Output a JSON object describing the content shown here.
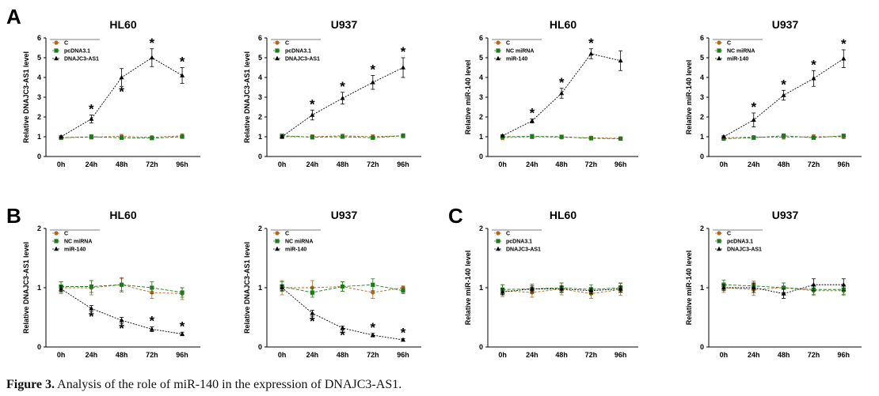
{
  "figure": {
    "caption_label": "Figure 3.",
    "caption_text": " Analysis of the role of miR-140 in the expression of DNAJC3-AS1.",
    "colors": {
      "C": "#b5651d",
      "green": "#1e7a1e",
      "black": "#000000"
    }
  },
  "chart_data": [
    {
      "panel_label": "A",
      "title": "HL60",
      "type": "line",
      "ylabel": "Relative DNAJC3-AS1 level",
      "ylim": [
        0,
        6
      ],
      "yticks": [
        0,
        1,
        2,
        3,
        4,
        5,
        6
      ],
      "categories": [
        "0h",
        "24h",
        "48h",
        "72h",
        "96h"
      ],
      "series": [
        {
          "name": "C",
          "marker": "circle",
          "color": "#b5651d",
          "values": [
            0.95,
            0.98,
            1.02,
            0.97,
            1.05
          ],
          "err": [
            0.1,
            0.1,
            0.1,
            0.08,
            0.1
          ]
        },
        {
          "name": "pcDNA3.1",
          "marker": "square",
          "color": "#1e7a1e",
          "values": [
            0.95,
            1.0,
            0.95,
            0.93,
            1.0
          ],
          "err": [
            0.08,
            0.1,
            0.08,
            0.07,
            0.08
          ]
        },
        {
          "name": "DNAJC3-AS1",
          "marker": "triangle",
          "color": "#000000",
          "values": [
            1.0,
            1.9,
            4.0,
            5.0,
            4.1
          ],
          "err": [
            0.05,
            0.2,
            0.45,
            0.45,
            0.4
          ]
        }
      ],
      "stars": [
        {
          "x": 1,
          "pos": "above"
        },
        {
          "x": 2,
          "pos": "below"
        },
        {
          "x": 3,
          "pos": "above"
        },
        {
          "x": 4,
          "pos": "above"
        }
      ]
    },
    {
      "panel_label": "",
      "title": "U937",
      "type": "line",
      "ylabel": "Relative DNAJC3-AS1 level",
      "ylim": [
        0,
        6
      ],
      "yticks": [
        0,
        1,
        2,
        3,
        4,
        5,
        6
      ],
      "categories": [
        "0h",
        "24h",
        "48h",
        "72h",
        "96h"
      ],
      "series": [
        {
          "name": "C",
          "marker": "circle",
          "color": "#b5651d",
          "values": [
            1.0,
            1.0,
            1.05,
            1.0,
            1.05
          ],
          "err": [
            0.1,
            0.1,
            0.08,
            0.1,
            0.1
          ]
        },
        {
          "name": "pcDNA3.1",
          "marker": "square",
          "color": "#1e7a1e",
          "values": [
            1.05,
            0.98,
            1.0,
            0.95,
            1.05
          ],
          "err": [
            0.08,
            0.1,
            0.08,
            0.08,
            0.1
          ]
        },
        {
          "name": "DNAJC3-AS1",
          "marker": "triangle",
          "color": "#000000",
          "values": [
            1.0,
            2.1,
            2.95,
            3.75,
            4.5
          ],
          "err": [
            0.05,
            0.25,
            0.3,
            0.35,
            0.5
          ]
        }
      ],
      "stars": [
        {
          "x": 1,
          "pos": "above"
        },
        {
          "x": 2,
          "pos": "above"
        },
        {
          "x": 3,
          "pos": "above"
        },
        {
          "x": 4,
          "pos": "above"
        }
      ]
    },
    {
      "panel_label": "",
      "title": "HL60",
      "type": "line",
      "ylabel": "Relative miR-140 level",
      "ylim": [
        0,
        6
      ],
      "yticks": [
        0,
        1,
        2,
        3,
        4,
        5,
        6
      ],
      "categories": [
        "0h",
        "24h",
        "48h",
        "72h",
        "96h"
      ],
      "series": [
        {
          "name": "C",
          "marker": "circle",
          "color": "#b5651d",
          "values": [
            0.95,
            1.0,
            0.97,
            0.95,
            0.92
          ],
          "err": [
            0.1,
            0.1,
            0.08,
            0.08,
            0.08
          ]
        },
        {
          "name": "NC miRNA",
          "marker": "square",
          "color": "#1e7a1e",
          "values": [
            1.0,
            1.02,
            1.0,
            0.92,
            0.9
          ],
          "err": [
            0.08,
            0.1,
            0.08,
            0.08,
            0.08
          ]
        },
        {
          "name": "miR-140",
          "marker": "triangle",
          "color": "#000000",
          "values": [
            1.05,
            1.8,
            3.2,
            5.2,
            4.85
          ],
          "err": [
            0.05,
            0.1,
            0.25,
            0.25,
            0.5
          ]
        }
      ],
      "stars": [
        {
          "x": 1,
          "pos": "above"
        },
        {
          "x": 2,
          "pos": "above"
        },
        {
          "x": 3,
          "pos": "above"
        }
      ]
    },
    {
      "panel_label": "",
      "title": "U937",
      "type": "line",
      "ylabel": "Relative miR-140 level",
      "ylim": [
        0,
        6
      ],
      "yticks": [
        0,
        1,
        2,
        3,
        4,
        5,
        6
      ],
      "categories": [
        "0h",
        "24h",
        "48h",
        "72h",
        "96h"
      ],
      "series": [
        {
          "name": "C",
          "marker": "circle",
          "color": "#b5651d",
          "values": [
            0.95,
            0.98,
            0.98,
            1.0,
            1.0
          ],
          "err": [
            0.08,
            0.08,
            0.1,
            0.1,
            0.1
          ]
        },
        {
          "name": "NC miRNA",
          "marker": "square",
          "color": "#1e7a1e",
          "values": [
            0.9,
            0.95,
            1.05,
            0.95,
            1.05
          ],
          "err": [
            0.08,
            0.08,
            0.1,
            0.08,
            0.08
          ]
        },
        {
          "name": "miR-140",
          "marker": "triangle",
          "color": "#000000",
          "values": [
            1.0,
            1.85,
            3.1,
            3.95,
            4.95
          ],
          "err": [
            0.05,
            0.35,
            0.25,
            0.4,
            0.45
          ]
        }
      ],
      "stars": [
        {
          "x": 1,
          "pos": "above"
        },
        {
          "x": 2,
          "pos": "above"
        },
        {
          "x": 3,
          "pos": "above"
        },
        {
          "x": 4,
          "pos": "above"
        }
      ]
    },
    {
      "panel_label": "B",
      "title": "HL60",
      "type": "line",
      "ylabel": "Relative DNAJC3-AS1 level",
      "ylim": [
        0,
        2
      ],
      "yticks": [
        0,
        1,
        2
      ],
      "categories": [
        "0h",
        "24h",
        "48h",
        "72h",
        "96h"
      ],
      "series": [
        {
          "name": "C",
          "marker": "circle",
          "color": "#b5651d",
          "values": [
            1.0,
            1.0,
            1.05,
            0.92,
            0.9
          ],
          "err": [
            0.1,
            0.12,
            0.1,
            0.1,
            0.1
          ]
        },
        {
          "name": "NC miRNA",
          "marker": "square",
          "color": "#1e7a1e",
          "values": [
            1.02,
            1.02,
            1.05,
            1.0,
            0.92
          ],
          "err": [
            0.08,
            0.1,
            0.12,
            0.1,
            0.08
          ]
        },
        {
          "name": "miR-140",
          "marker": "triangle",
          "color": "#000000",
          "values": [
            0.98,
            0.65,
            0.45,
            0.3,
            0.22
          ],
          "err": [
            0.05,
            0.05,
            0.05,
            0.04,
            0.03
          ]
        }
      ],
      "stars": [
        {
          "x": 1,
          "pos": "below"
        },
        {
          "x": 2,
          "pos": "below"
        },
        {
          "x": 3,
          "pos": "above"
        },
        {
          "x": 4,
          "pos": "above"
        }
      ]
    },
    {
      "panel_label": "",
      "title": "U937",
      "type": "line",
      "ylabel": "Relative DNAJC3-AS1 level",
      "ylim": [
        0,
        2
      ],
      "yticks": [
        0,
        1,
        2
      ],
      "categories": [
        "0h",
        "24h",
        "48h",
        "72h",
        "96h"
      ],
      "series": [
        {
          "name": "C",
          "marker": "circle",
          "color": "#b5651d",
          "values": [
            1.0,
            1.0,
            1.02,
            0.92,
            1.0
          ],
          "err": [
            0.12,
            0.12,
            0.08,
            0.1,
            0.03
          ]
        },
        {
          "name": "NC miRNA",
          "marker": "square",
          "color": "#1e7a1e",
          "values": [
            1.02,
            0.92,
            1.02,
            1.05,
            0.95
          ],
          "err": [
            0.08,
            0.08,
            0.08,
            0.1,
            0.05
          ]
        },
        {
          "name": "miR-140",
          "marker": "triangle",
          "color": "#000000",
          "values": [
            1.0,
            0.57,
            0.32,
            0.2,
            0.12
          ],
          "err": [
            0.05,
            0.05,
            0.03,
            0.03,
            0.02
          ]
        }
      ],
      "stars": [
        {
          "x": 1,
          "pos": "below"
        },
        {
          "x": 2,
          "pos": "below"
        },
        {
          "x": 3,
          "pos": "above"
        },
        {
          "x": 4,
          "pos": "above"
        }
      ]
    },
    {
      "panel_label": "C",
      "title": "HL60",
      "type": "line",
      "ylabel": "Relative miR-140 level",
      "ylim": [
        0,
        2
      ],
      "yticks": [
        0,
        1,
        2
      ],
      "categories": [
        "0h",
        "24h",
        "48h",
        "72h",
        "96h"
      ],
      "series": [
        {
          "name": "C",
          "marker": "circle",
          "color": "#b5651d",
          "values": [
            0.95,
            0.92,
            0.98,
            0.9,
            0.97
          ],
          "err": [
            0.1,
            0.08,
            0.1,
            0.08,
            0.1
          ]
        },
        {
          "name": "pcDNA3.1",
          "marker": "square",
          "color": "#1e7a1e",
          "values": [
            0.97,
            0.98,
            1.0,
            0.97,
            1.0
          ],
          "err": [
            0.08,
            0.08,
            0.08,
            0.08,
            0.08
          ]
        },
        {
          "name": "DNAJC3-AS1",
          "marker": "triangle",
          "color": "#000000",
          "values": [
            0.93,
            0.98,
            0.98,
            0.95,
            0.98
          ],
          "err": [
            0.05,
            0.05,
            0.05,
            0.05,
            0.05
          ]
        }
      ],
      "stars": []
    },
    {
      "panel_label": "",
      "title": "U937",
      "type": "line",
      "ylabel": "Relative miR-140 level",
      "ylim": [
        0,
        2
      ],
      "yticks": [
        0,
        1,
        2
      ],
      "categories": [
        "0h",
        "24h",
        "48h",
        "72h",
        "96h"
      ],
      "series": [
        {
          "name": "C",
          "marker": "circle",
          "color": "#b5651d",
          "values": [
            1.0,
            0.97,
            1.0,
            0.95,
            0.95
          ],
          "err": [
            0.08,
            0.1,
            0.08,
            0.08,
            0.08
          ]
        },
        {
          "name": "pcDNA3.1",
          "marker": "square",
          "color": "#1e7a1e",
          "values": [
            1.05,
            1.03,
            1.0,
            0.97,
            0.97
          ],
          "err": [
            0.08,
            0.08,
            0.08,
            0.08,
            0.08
          ]
        },
        {
          "name": "DNAJC3-AS1",
          "marker": "triangle",
          "color": "#000000",
          "values": [
            1.0,
            1.0,
            0.9,
            1.05,
            1.05
          ],
          "err": [
            0.05,
            0.08,
            0.08,
            0.1,
            0.1
          ]
        }
      ],
      "stars": []
    }
  ]
}
